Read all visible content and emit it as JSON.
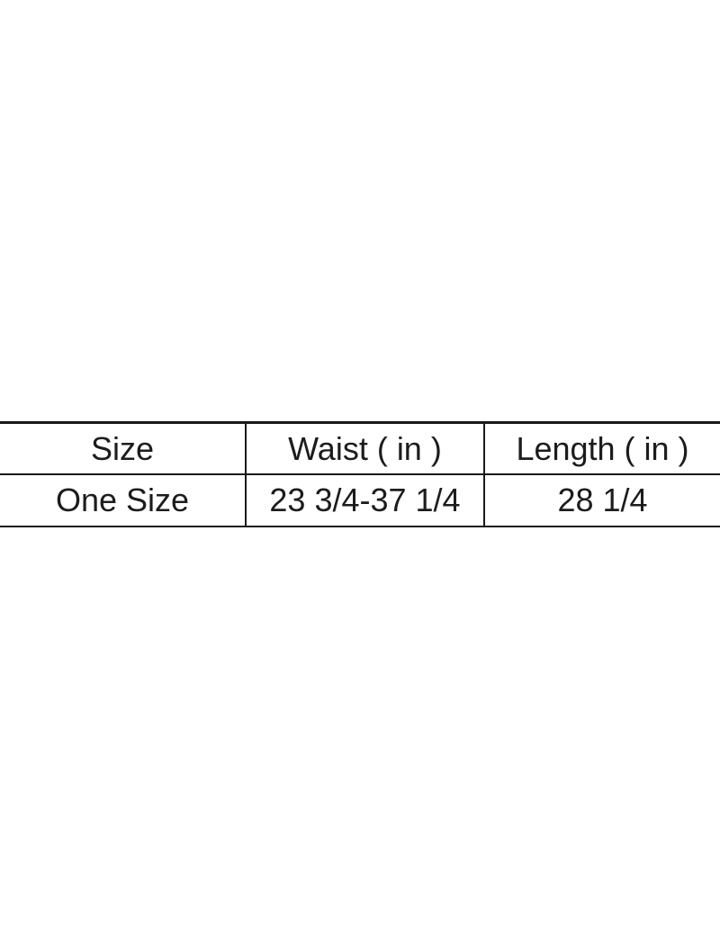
{
  "theme": {
    "background": "#ffffff",
    "border_color": "#1a1a1a",
    "text_color": "#1c1c1c"
  },
  "chart_data": {
    "type": "table",
    "title": "",
    "columns": [
      "Size",
      "Waist ( in )",
      "Length ( in )"
    ],
    "rows": [
      [
        "One Size",
        "23 3/4-37 1/4",
        "28 1/4"
      ]
    ],
    "layout": {
      "grid": "horizontal-and-internal-vertical-rules",
      "outer_left_right_borders": false,
      "text_align": "center"
    }
  }
}
